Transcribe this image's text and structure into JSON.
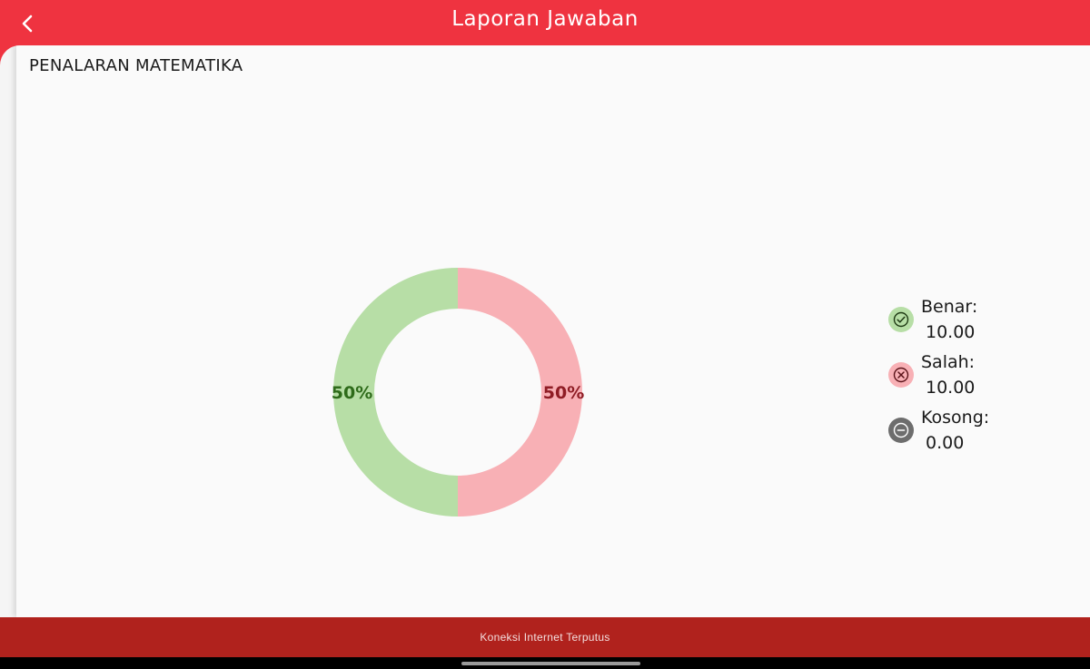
{
  "header": {
    "title": "Laporan Jawaban",
    "back_icon": "chevron-left-icon"
  },
  "section": {
    "title": "PENALARAN MATEMATIKA"
  },
  "chart_data": {
    "type": "pie",
    "donut": true,
    "categories": [
      "Benar",
      "Salah",
      "Kosong"
    ],
    "values": [
      10.0,
      10.0,
      0.0
    ],
    "slice_labels": [
      "50%",
      "50%",
      ""
    ],
    "colors": [
      "#b7dea6",
      "#f8b0b5",
      "#757575"
    ],
    "label_colors": [
      "#2e6b1a",
      "#8f1d25",
      "#333333"
    ]
  },
  "legend": {
    "items": [
      {
        "label": "Benar:",
        "value": "10.00",
        "icon": "check-circle-icon",
        "bg": "#b7dea6",
        "fg": "#2e6b1a"
      },
      {
        "label": "Salah:",
        "value": "10.00",
        "icon": "x-circle-icon",
        "bg": "#f8b0b5",
        "fg": "#8f1d25"
      },
      {
        "label": "Kosong:",
        "value": "0.00",
        "icon": "minus-circle-icon",
        "bg": "#6d6d6d",
        "fg": "#ffffff"
      }
    ]
  },
  "status": {
    "text": "Koneksi Internet Terputus"
  },
  "colors": {
    "brand": "#ef3340",
    "status_bar": "#b0221d"
  }
}
